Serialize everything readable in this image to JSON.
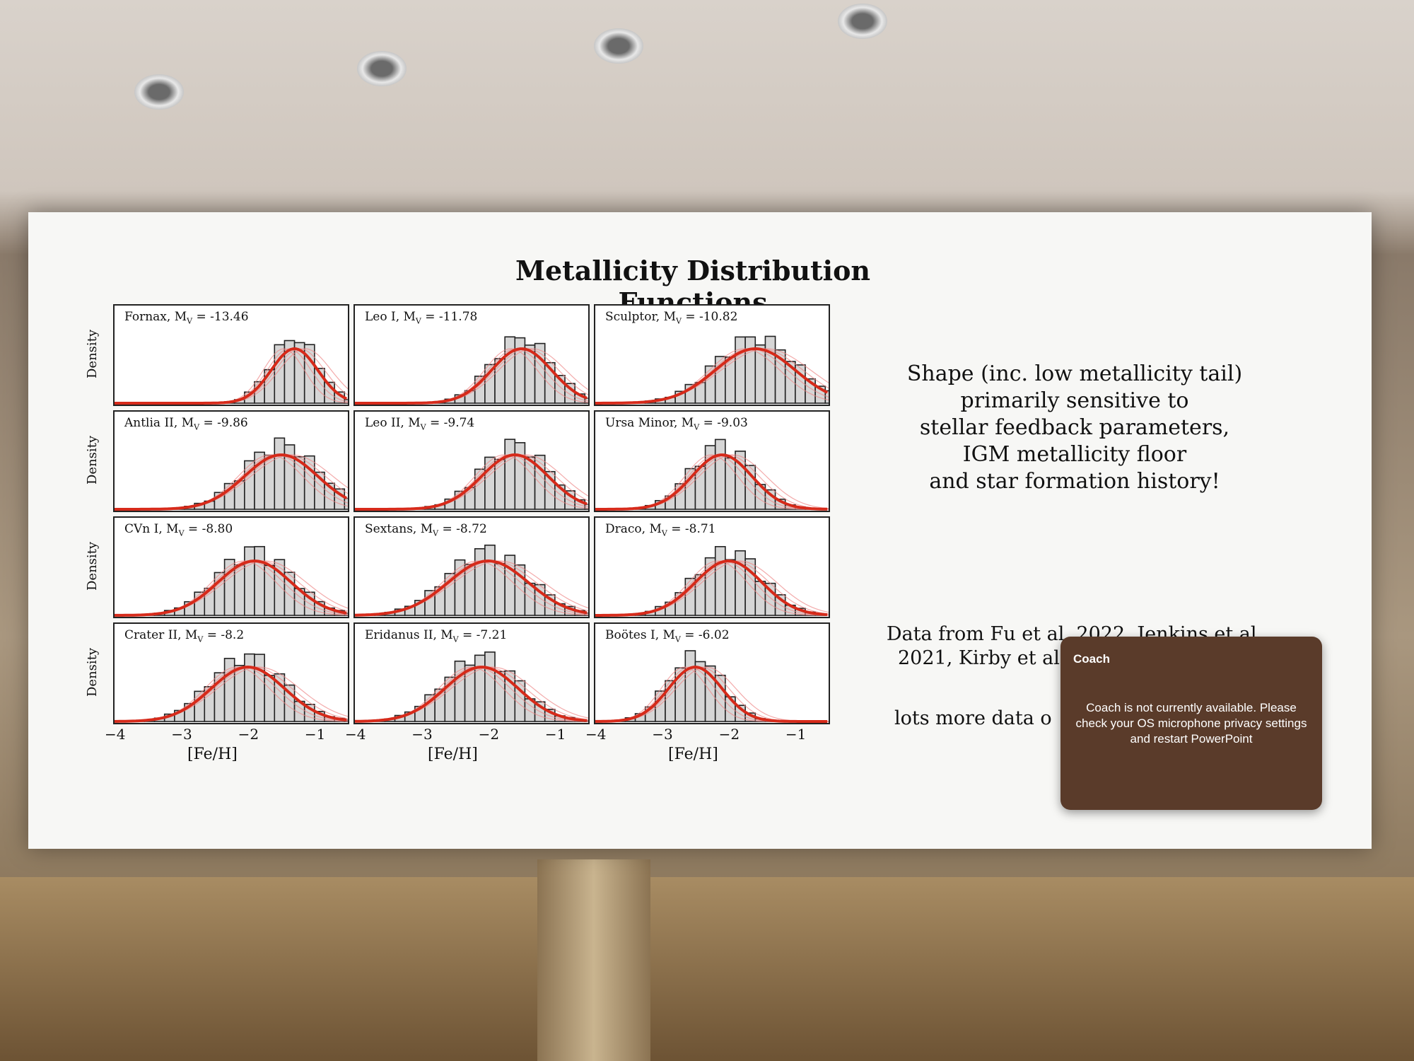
{
  "slide": {
    "title": "Metallicity Distribution Functions",
    "side_text": [
      "Shape (inc. low metallicity tail)",
      "primarily sensitive to",
      "stellar feedback parameters,",
      "IGM metallicity floor",
      "and star formation history!"
    ],
    "refs": [
      "Data from Fu et al. 2022, Jenkins et al.",
      "2021, Kirby et al"
    ],
    "more": "lots more data o"
  },
  "coach": {
    "title": "Coach",
    "message": "Coach is not currently available. Please check your OS microphone privacy settings and restart PowerPoint"
  },
  "axes": {
    "ylabel": "Density",
    "xlabel": "[Fe/H]",
    "xticks": [
      "−4",
      "−3",
      "−2",
      "−1"
    ]
  },
  "chart_data": [
    {
      "type": "bar",
      "title": "Fornax, M_V = -13.46",
      "label": "Fornax, M",
      "sub": "V",
      "val": " = -13.46",
      "peak": -1.3,
      "width": 0.35,
      "xlim": [
        -4,
        -0.5
      ]
    },
    {
      "type": "bar",
      "title": "Leo I, M_V = -11.78",
      "label": "Leo I, M",
      "sub": "V",
      "val": " = -11.78",
      "peak": -1.5,
      "width": 0.45,
      "xlim": [
        -4,
        -0.5
      ]
    },
    {
      "type": "bar",
      "title": "Sculptor, M_V = -10.82",
      "label": "Sculptor, M",
      "sub": "V",
      "val": " = -10.82",
      "peak": -1.6,
      "width": 0.6,
      "xlim": [
        -4,
        -0.5
      ]
    },
    {
      "type": "bar",
      "title": "Antlia II, M_V = -9.86",
      "label": "Antlia II, M",
      "sub": "V",
      "val": " = -9.86",
      "peak": -1.5,
      "width": 0.55,
      "xlim": [
        -4,
        -0.5
      ]
    },
    {
      "type": "bar",
      "title": "Leo II, M_V = -9.74",
      "label": "Leo II, M",
      "sub": "V",
      "val": " = -9.74",
      "peak": -1.6,
      "width": 0.5,
      "xlim": [
        -4,
        -0.5
      ]
    },
    {
      "type": "bar",
      "title": "Ursa Minor, M_V = -9.03",
      "label": "Ursa Minor, M",
      "sub": "V",
      "val": " = -9.03",
      "peak": -2.1,
      "width": 0.45,
      "xlim": [
        -4,
        -0.5
      ]
    },
    {
      "type": "bar",
      "title": "CVn I, M_V = -8.80",
      "label": "CVn I, M",
      "sub": "V",
      "val": " = -8.80",
      "peak": -1.9,
      "width": 0.55,
      "xlim": [
        -4,
        -0.5
      ]
    },
    {
      "type": "bar",
      "title": "Sextans, M_V = -8.72",
      "label": "Sextans, M",
      "sub": "V",
      "val": " = -8.72",
      "peak": -2.0,
      "width": 0.6,
      "xlim": [
        -4,
        -0.5
      ]
    },
    {
      "type": "bar",
      "title": "Draco, M_V = -8.71",
      "label": "Draco, M",
      "sub": "V",
      "val": " = -8.71",
      "peak": -2.0,
      "width": 0.5,
      "xlim": [
        -4,
        -0.5
      ]
    },
    {
      "type": "bar",
      "title": "Crater II, M_V = -8.2",
      "label": "Crater II, M",
      "sub": "V",
      "val": " = -8.2",
      "peak": -2.0,
      "width": 0.55,
      "xlim": [
        -4,
        -0.5
      ]
    },
    {
      "type": "bar",
      "title": "Eridanus II, M_V = -7.21",
      "label": "Eridanus II, M",
      "sub": "V",
      "val": " = -7.21",
      "peak": -2.1,
      "width": 0.55,
      "xlim": [
        -4,
        -0.5
      ]
    },
    {
      "type": "bar",
      "title": "Boötes I, M_V = -6.02",
      "label": "Boötes I, M",
      "sub": "V",
      "val": " = -6.02",
      "peak": -2.5,
      "width": 0.4,
      "xlim": [
        -4,
        -0.5
      ]
    }
  ]
}
